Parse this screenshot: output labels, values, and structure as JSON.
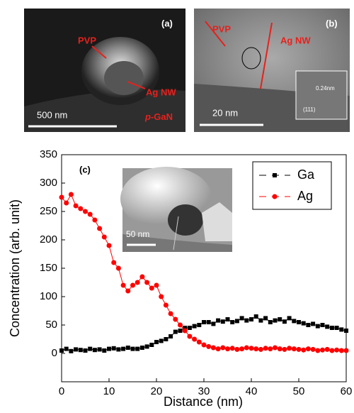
{
  "panels": {
    "a": {
      "label": "(a)",
      "pvp": "PVP",
      "wire": "Ag NW",
      "scale": "500 nm",
      "substrate_prefix": "p",
      "substrate": "-GaN"
    },
    "b": {
      "label": "(b)",
      "pvp": "PVP",
      "wire": "Ag NW",
      "scale": "20 nm",
      "spacing": "0.24nm",
      "plane": "(111)"
    }
  },
  "chart_data": {
    "type": "scatter",
    "panel_label": "(c)",
    "inset_scale": "50 nm",
    "xlabel": "Distance (nm)",
    "ylabel": "Concentration (arb. unit)",
    "xlim": [
      0,
      60
    ],
    "ylim": [
      -50,
      350
    ],
    "xticks": [
      0,
      10,
      20,
      30,
      40,
      50,
      60
    ],
    "yticks": [
      0,
      50,
      100,
      150,
      200,
      250,
      300,
      350
    ],
    "legend": "upper right",
    "x": [
      0,
      1,
      2,
      3,
      4,
      5,
      6,
      7,
      8,
      9,
      10,
      11,
      12,
      13,
      14,
      15,
      16,
      17,
      18,
      19,
      20,
      21,
      22,
      23,
      24,
      25,
      26,
      27,
      28,
      29,
      30,
      31,
      32,
      33,
      34,
      35,
      36,
      37,
      38,
      39,
      40,
      41,
      42,
      43,
      44,
      45,
      46,
      47,
      48,
      49,
      50,
      51,
      52,
      53,
      54,
      55,
      56,
      57,
      58,
      59,
      60
    ],
    "series": [
      {
        "name": "Ga",
        "color": "#000000",
        "marker": "square",
        "values": [
          5,
          8,
          4,
          7,
          6,
          5,
          8,
          6,
          7,
          5,
          8,
          9,
          7,
          8,
          10,
          8,
          8,
          10,
          12,
          15,
          20,
          22,
          25,
          30,
          38,
          40,
          45,
          45,
          48,
          50,
          55,
          55,
          52,
          58,
          56,
          60,
          55,
          57,
          62,
          58,
          60,
          65,
          58,
          62,
          55,
          58,
          60,
          56,
          62,
          57,
          55,
          53,
          50,
          52,
          48,
          50,
          47,
          45,
          45,
          42,
          40
        ]
      },
      {
        "name": "Ag",
        "color": "#ff0000",
        "marker": "circle",
        "values": [
          275,
          265,
          280,
          260,
          255,
          250,
          245,
          235,
          220,
          205,
          190,
          160,
          150,
          120,
          110,
          120,
          125,
          135,
          125,
          115,
          120,
          100,
          85,
          70,
          60,
          50,
          40,
          30,
          25,
          20,
          15,
          12,
          10,
          8,
          10,
          8,
          9,
          7,
          8,
          10,
          9,
          8,
          7,
          9,
          8,
          10,
          8,
          7,
          9,
          8,
          7,
          6,
          8,
          7,
          5,
          6,
          7,
          5,
          6,
          5,
          5
        ]
      }
    ]
  }
}
